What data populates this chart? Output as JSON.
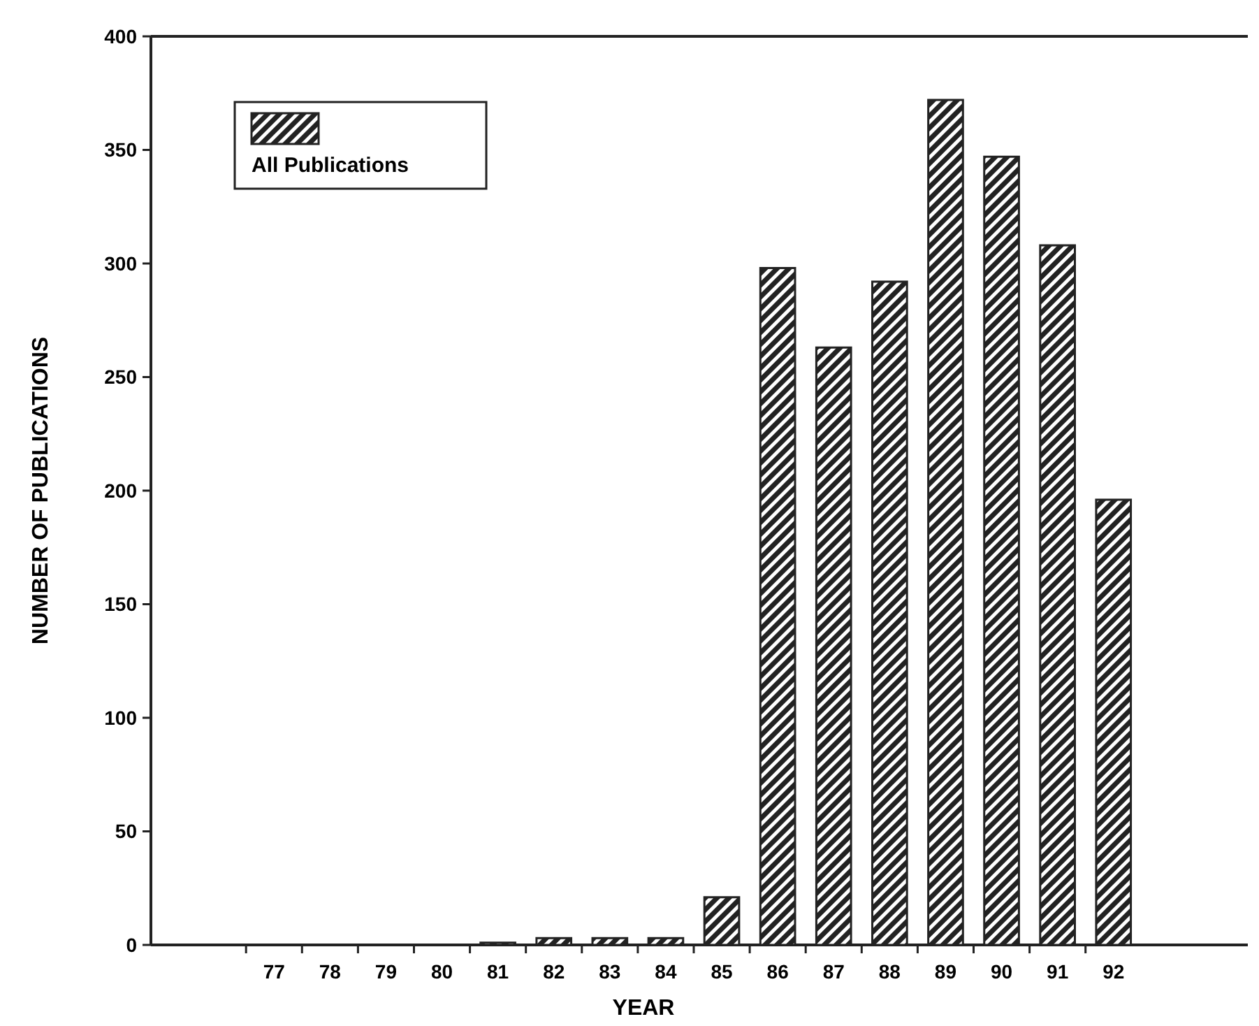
{
  "chart_data": {
    "type": "bar",
    "xlabel": "YEAR",
    "ylabel": "NUMBER OF PUBLICATIONS",
    "categories": [
      "77",
      "78",
      "79",
      "80",
      "81",
      "82",
      "83",
      "84",
      "85",
      "86",
      "87",
      "88",
      "89",
      "90",
      "91",
      "92"
    ],
    "series": [
      {
        "name": "All Publications",
        "color": "#222222",
        "values": [
          0,
          0,
          0,
          0,
          1,
          3,
          3,
          3,
          21,
          298,
          263,
          292,
          372,
          347,
          308,
          196
        ]
      }
    ],
    "ylim": [
      0,
      400
    ],
    "yticks": [
      0,
      50,
      100,
      150,
      200,
      250,
      300,
      350,
      400
    ],
    "grid": false,
    "legend": "top left"
  }
}
